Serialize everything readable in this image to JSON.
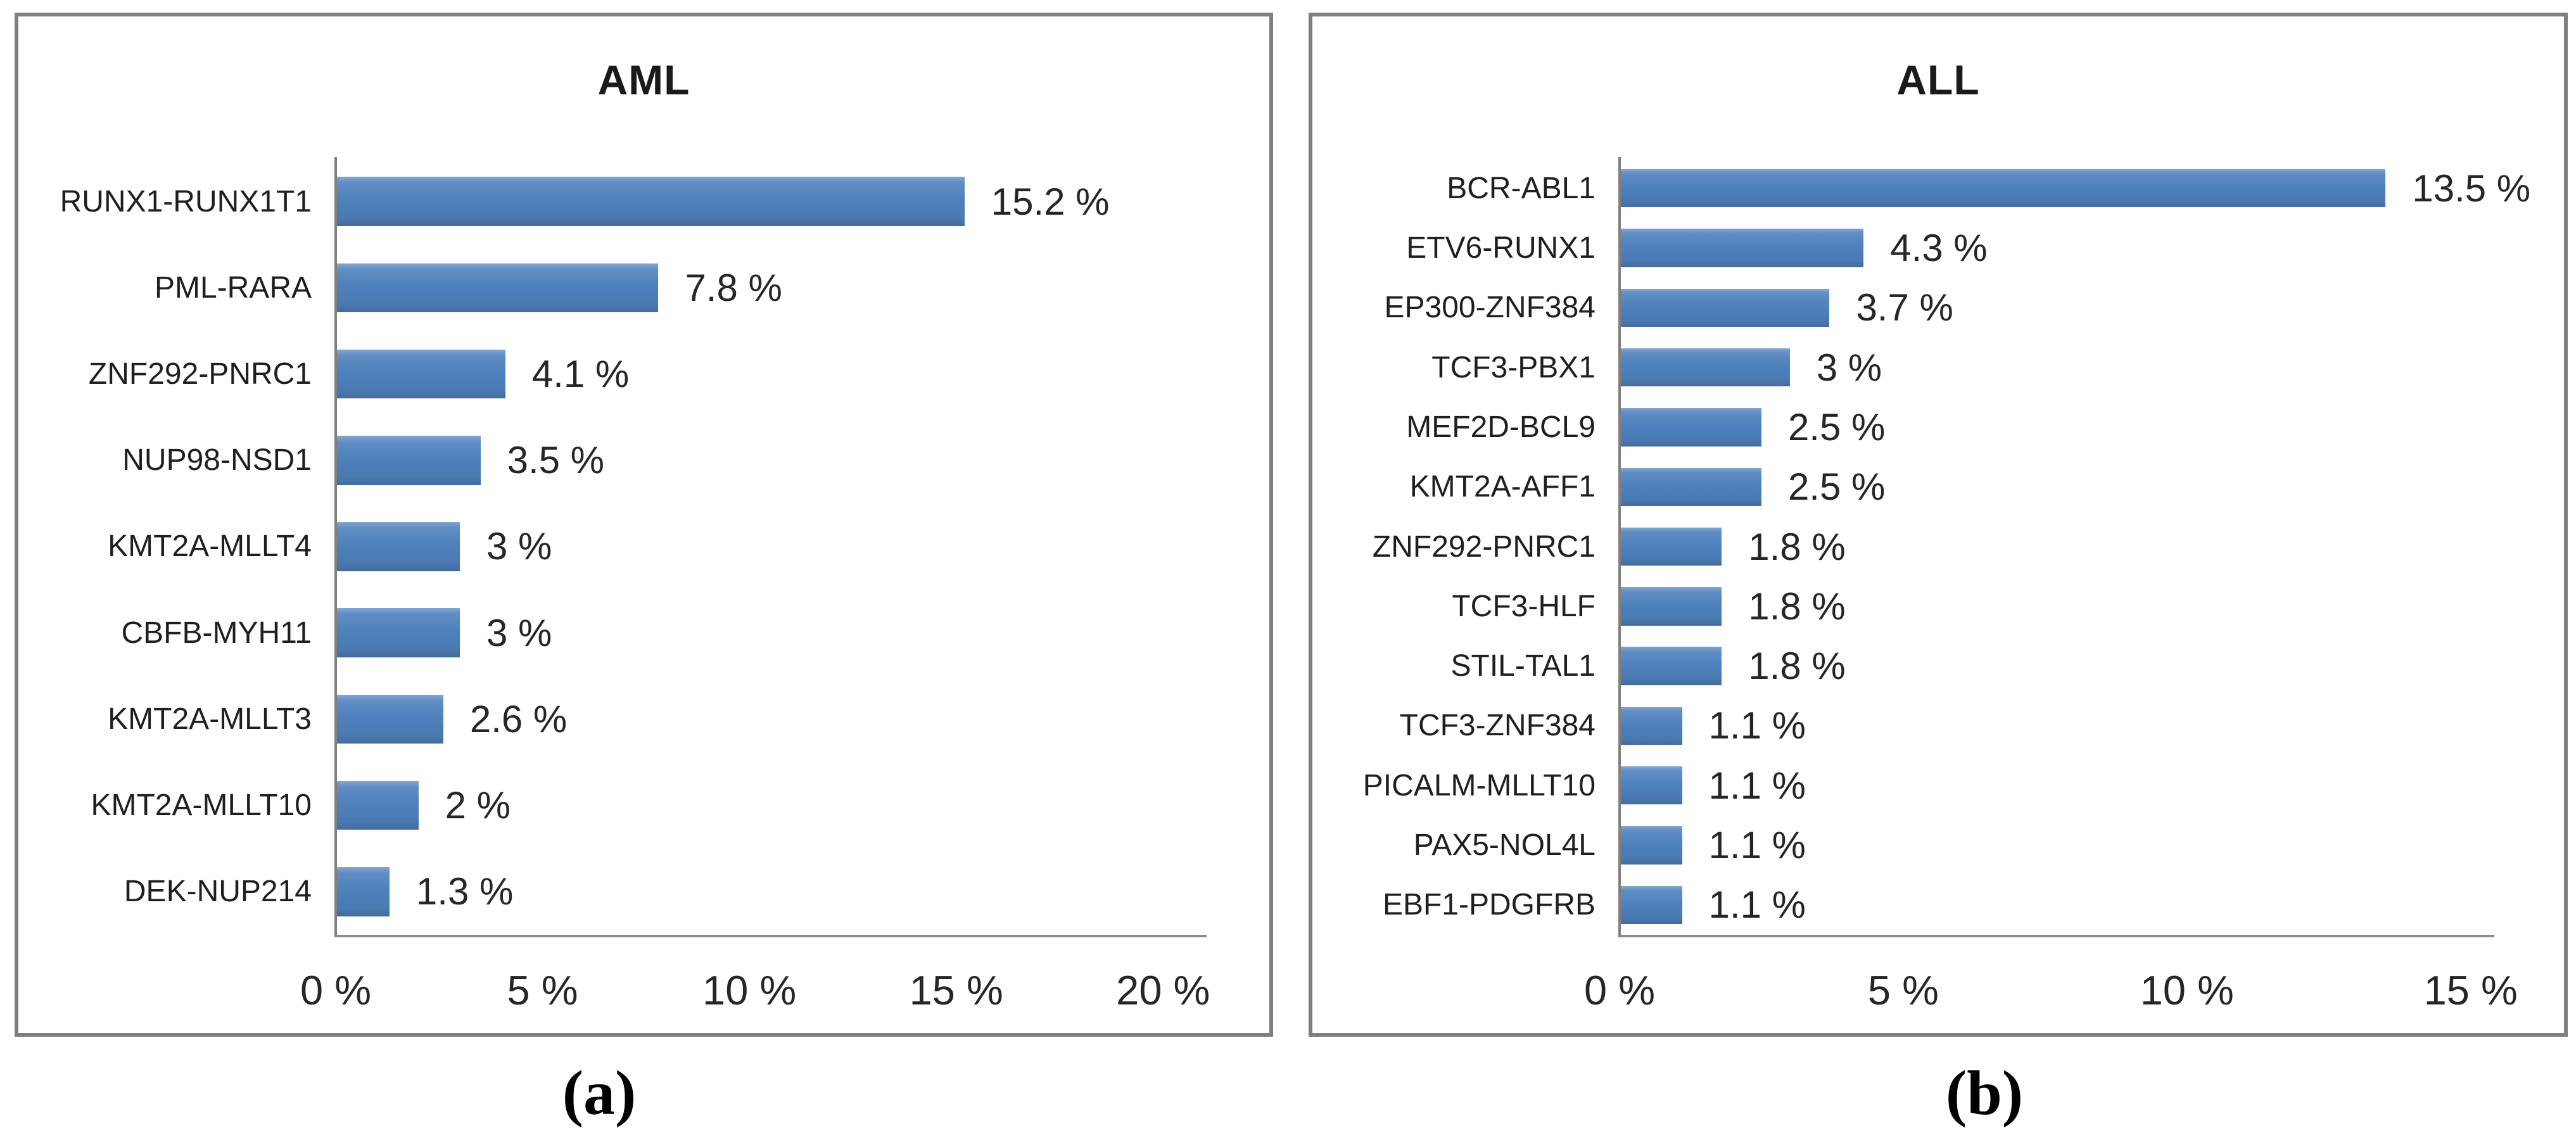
{
  "colors": {
    "bar": "#4F81BD",
    "panel_border": "#7F7F7F",
    "category_axis_line": "#808080",
    "x_axis_line": "#8C8C8C",
    "text": "#1F1F1F"
  },
  "captions": {
    "a": "(a)",
    "b": "(b)"
  },
  "chart_data": [
    {
      "type": "bar",
      "orientation": "horizontal",
      "title": "AML",
      "categories": [
        "RUNX1-RUNX1T1",
        "PML-RARA",
        "ZNF292-PNRC1",
        "NUP98-NSD1",
        "KMT2A-MLLT4",
        "CBFB-MYH11",
        "KMT2A-MLLT3",
        "KMT2A-MLLT10",
        "DEK-NUP214"
      ],
      "values": [
        15.2,
        7.8,
        4.1,
        3.5,
        3,
        3,
        2.6,
        2,
        1.3
      ],
      "value_labels": [
        "15.2 %",
        "7.8 %",
        "4.1 %",
        "3.5 %",
        "3 %",
        "3 %",
        "2.6 %",
        "2 %",
        "1.3 %"
      ],
      "xlabel": "",
      "ylabel": "",
      "xlim": [
        0,
        20
      ],
      "xticks": [
        0,
        5,
        10,
        15,
        20
      ],
      "xtick_labels": [
        "0 %",
        "5 %",
        "10 %",
        "15 %",
        "20 %"
      ],
      "grid": false,
      "legend": false,
      "panel_label": "(a)"
    },
    {
      "type": "bar",
      "orientation": "horizontal",
      "title": "ALL",
      "categories": [
        "BCR-ABL1",
        "ETV6-RUNX1",
        "EP300-ZNF384",
        "TCF3-PBX1",
        "MEF2D-BCL9",
        "KMT2A-AFF1",
        "ZNF292-PNRC1",
        "TCF3-HLF",
        "STIL-TAL1",
        "TCF3-ZNF384",
        "PICALM-MLLT10",
        "PAX5-NOL4L",
        "EBF1-PDGFRB"
      ],
      "values": [
        13.5,
        4.3,
        3.7,
        3,
        2.5,
        2.5,
        1.8,
        1.8,
        1.8,
        1.1,
        1.1,
        1.1,
        1.1
      ],
      "value_labels": [
        "13.5 %",
        "4.3 %",
        "3.7 %",
        "3 %",
        "2.5 %",
        "2.5 %",
        "1.8 %",
        "1.8 %",
        "1.8 %",
        "1.1 %",
        "1.1 %",
        "1.1 %",
        "1.1 %"
      ],
      "xlabel": "",
      "ylabel": "",
      "xlim": [
        0,
        15
      ],
      "xticks": [
        0,
        5,
        10,
        15
      ],
      "xtick_labels": [
        "0 %",
        "5 %",
        "10 %",
        "15 %"
      ],
      "grid": false,
      "legend": false,
      "panel_label": "(b)"
    }
  ]
}
